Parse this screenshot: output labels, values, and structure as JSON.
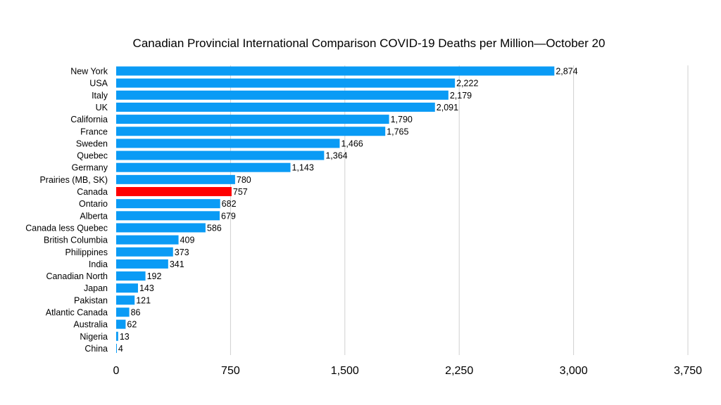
{
  "chart_data": {
    "type": "bar",
    "orientation": "horizontal",
    "title": "Canadian Provincial International Comparison COVID-19 Deaths per Million—October 20",
    "xlabel": "",
    "ylabel": "",
    "xlim": [
      0,
      3750
    ],
    "x_ticks": [
      "0",
      "750",
      "1,500",
      "2,250",
      "3,000",
      "3,750"
    ],
    "x_tick_values": [
      0,
      750,
      1500,
      2250,
      3000,
      3750
    ],
    "grid": "vertical",
    "legend": "none",
    "categories": [
      "New York",
      "USA",
      "Italy",
      "UK",
      "California",
      "France",
      "Sweden",
      "Quebec",
      "Germany",
      "Prairies (MB, SK)",
      "Canada",
      "Ontario",
      "Alberta",
      "Canada less Quebec",
      "British Columbia",
      "Philippines",
      "India",
      "Canadian North",
      "Japan",
      "Pakistan",
      "Atlantic Canada",
      "Australia",
      "Nigeria",
      "China"
    ],
    "values": [
      2874,
      2222,
      2179,
      2091,
      1790,
      1765,
      1466,
      1364,
      1143,
      780,
      757,
      682,
      679,
      586,
      409,
      373,
      341,
      192,
      143,
      121,
      86,
      62,
      13,
      4
    ],
    "value_labels": [
      "2,874",
      "2,222",
      "2,179",
      "2,091",
      "1,790",
      "1,765",
      "1,466",
      "1,364",
      "1,143",
      "780",
      "757",
      "682",
      "679",
      "586",
      "409",
      "373",
      "341",
      "192",
      "143",
      "121",
      "86",
      "62",
      "13",
      "4"
    ],
    "highlight_category": "Canada",
    "colors": {
      "bar": "#0a9bf5",
      "highlight": "#ff0000",
      "grid": "#d0d0d0"
    }
  }
}
